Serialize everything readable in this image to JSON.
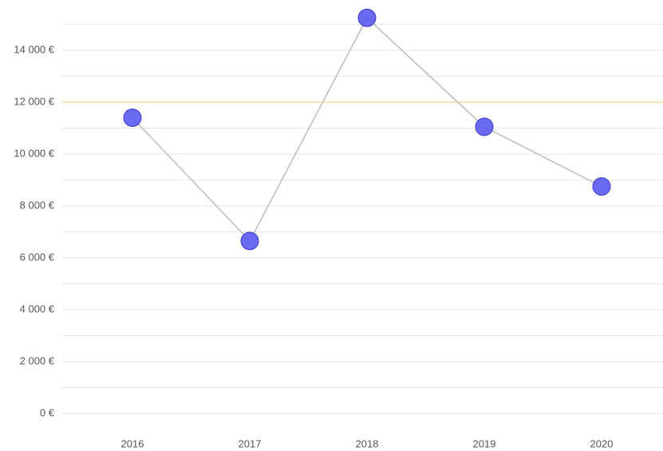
{
  "chart_data": {
    "type": "line",
    "categories": [
      "2016",
      "2017",
      "2018",
      "2019",
      "2020"
    ],
    "series": [
      {
        "values": [
          11400,
          6650,
          15250,
          11050,
          8750
        ],
        "color": "#5a5af2",
        "line_color": "#bdbdbd"
      }
    ],
    "ylim": [
      0,
      16000
    ],
    "yticks": [
      {
        "value": 0,
        "label": "0 €"
      },
      {
        "value": 2000,
        "label": "2 000 €"
      },
      {
        "value": 4000,
        "label": "4 000 €"
      },
      {
        "value": 6000,
        "label": "6 000 €"
      },
      {
        "value": 8000,
        "label": "8 000 €"
      },
      {
        "value": 10000,
        "label": "10 000 €"
      },
      {
        "value": 12000,
        "label": "12 000 €"
      },
      {
        "value": 14000,
        "label": "14 000 €"
      }
    ],
    "minor_yticks": [
      1000,
      3000,
      5000,
      7000,
      9000,
      11000,
      13000,
      15000
    ],
    "threshold": {
      "value": 12000,
      "color": "#f0d9a8"
    },
    "grid": true
  }
}
